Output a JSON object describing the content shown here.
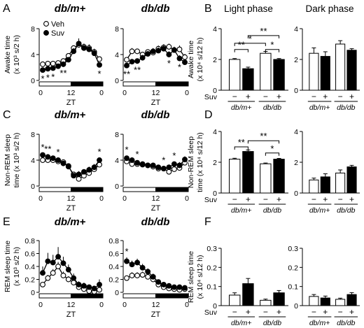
{
  "chart_data": [
    {
      "id": "A-dbm",
      "letter": "A",
      "type": "line",
      "title": "db/m+",
      "ylabel": [
        "Awake time",
        "(x 10³ s/2 h)"
      ],
      "xlabel": "ZT",
      "x": [
        0,
        2,
        4,
        6,
        8,
        10,
        12,
        14,
        16,
        18,
        20,
        22
      ],
      "ylim": [
        0,
        8
      ],
      "yticks": [
        "0",
        "4",
        "8"
      ],
      "xticks": [
        "0",
        "12",
        "0"
      ],
      "light_dark_bar": true,
      "legend": [
        "Veh",
        "Suv"
      ],
      "series": [
        {
          "name": "Veh",
          "values": [
            2.5,
            2.6,
            2.6,
            2.7,
            3.0,
            3.8,
            5.0,
            5.5,
            5.2,
            5.0,
            4.4,
            3.3
          ],
          "err": [
            0.3,
            0.3,
            0.3,
            0.3,
            0.3,
            0.4,
            0.4,
            0.6,
            0.5,
            0.6,
            0.5,
            0.4
          ]
        },
        {
          "name": "Suv",
          "values": [
            1.6,
            1.8,
            1.9,
            2.2,
            2.5,
            3.2,
            4.5,
            5.7,
            5.0,
            4.8,
            4.2,
            2.4
          ],
          "err": [
            0.3,
            0.3,
            0.3,
            0.3,
            0.3,
            0.4,
            0.5,
            0.8,
            0.5,
            0.6,
            0.5,
            0.4
          ]
        }
      ],
      "sig": [
        {
          "x": 0,
          "t": "*"
        },
        {
          "x": 2,
          "t": "*"
        },
        {
          "x": 4,
          "t": "*"
        },
        {
          "x": 8,
          "t": "**"
        },
        {
          "x": 22,
          "t": "*"
        }
      ]
    },
    {
      "id": "A-dbdb",
      "type": "line",
      "title": "db/db",
      "x": [
        0,
        2,
        4,
        6,
        8,
        10,
        12,
        14,
        16,
        18,
        20,
        22
      ],
      "ylim": [
        0,
        8
      ],
      "yticks": [
        "0",
        "4",
        "8"
      ],
      "xticks": [
        "0",
        "12",
        "0"
      ],
      "light_dark_bar": true,
      "series": [
        {
          "name": "Veh",
          "values": [
            3.2,
            4.5,
            4.5,
            4.0,
            4.4,
            4.3,
            4.9,
            5.1,
            5.2,
            4.7,
            4.8,
            3.6
          ],
          "err": [
            0.4,
            0.5,
            0.4,
            0.4,
            0.4,
            0.4,
            0.5,
            0.5,
            0.5,
            0.5,
            0.6,
            0.5
          ]
        },
        {
          "name": "Suv",
          "values": [
            2.3,
            2.9,
            3.0,
            3.5,
            4.1,
            4.5,
            4.6,
            4.9,
            4.0,
            4.7,
            3.4,
            2.8
          ],
          "err": [
            0.4,
            0.4,
            0.4,
            0.4,
            0.4,
            0.5,
            0.5,
            0.5,
            0.5,
            0.5,
            0.5,
            0.5
          ]
        }
      ],
      "sig": [
        {
          "x": 0,
          "t": "**"
        },
        {
          "x": 4,
          "t": "**"
        },
        {
          "x": 16,
          "t": "*"
        },
        {
          "x": 20,
          "t": "*"
        }
      ]
    },
    {
      "id": "B-light",
      "letter": "B",
      "type": "bar",
      "title": "Light phase",
      "ylabel": [
        "Awake time",
        "(x 10⁴ s/12 h)"
      ],
      "ylim": [
        0,
        4
      ],
      "yticks": [
        "0",
        "2",
        "4"
      ],
      "groups": [
        "db/m+",
        "db/db"
      ],
      "treatment_label": "Suv",
      "treatment": [
        "−",
        "+"
      ],
      "values": [
        2.0,
        1.4,
        2.4,
        2.0
      ],
      "err": [
        0.06,
        0.1,
        0.12,
        0.06
      ],
      "brackets": [
        {
          "a": 0,
          "b": 1,
          "h": 2.65,
          "t": "**"
        },
        {
          "a": 0,
          "b": 2,
          "h": 3.05,
          "t": "*"
        },
        {
          "a": 2,
          "b": 3,
          "h": 2.65,
          "t": "*"
        },
        {
          "a": 1,
          "b": 3,
          "h": 3.55,
          "t": "**"
        }
      ]
    },
    {
      "id": "B-dark",
      "type": "bar",
      "title": "Dark phase",
      "ylim": [
        0,
        4
      ],
      "yticks": [
        "0",
        "2",
        "4"
      ],
      "groups": [
        "db/m+",
        "db/db"
      ],
      "treatment": [
        "−",
        "+"
      ],
      "values": [
        2.4,
        2.2,
        3.0,
        2.6
      ],
      "err": [
        0.35,
        0.3,
        0.22,
        0.1
      ],
      "brackets": []
    },
    {
      "id": "C-dbm",
      "letter": "C",
      "type": "line",
      "title": "db/m+",
      "ylabel": [
        "Non-REM sleep",
        "time (x 10³ s/2 h)"
      ],
      "xlabel": "ZT",
      "x": [
        0,
        2,
        4,
        6,
        8,
        10,
        12,
        14,
        16,
        18,
        20,
        22
      ],
      "ylim": [
        0,
        8
      ],
      "yticks": [
        "0",
        "4",
        "8"
      ],
      "xticks": [
        "0",
        "12",
        "0"
      ],
      "light_dark_bar": true,
      "series": [
        {
          "name": "Veh",
          "values": [
            4.0,
            4.0,
            4.0,
            3.8,
            3.7,
            3.0,
            1.8,
            1.1,
            1.6,
            2.0,
            2.6,
            3.3
          ],
          "err": [
            0.3,
            0.3,
            0.3,
            0.3,
            0.3,
            0.4,
            0.4,
            0.5,
            0.4,
            0.5,
            0.5,
            0.4
          ]
        },
        {
          "name": "Suv",
          "values": [
            4.8,
            4.5,
            4.3,
            4.0,
            3.5,
            3.1,
            1.6,
            1.8,
            2.2,
            2.5,
            2.9,
            4.0
          ],
          "err": [
            0.3,
            0.3,
            0.3,
            0.3,
            0.3,
            0.4,
            0.4,
            0.5,
            0.4,
            0.5,
            0.5,
            0.4
          ]
        }
      ],
      "sig": [
        {
          "x": 0,
          "t": "*"
        },
        {
          "x": 2,
          "t": "**"
        },
        {
          "x": 6,
          "t": "*"
        },
        {
          "x": 22,
          "t": "*"
        }
      ]
    },
    {
      "id": "C-dbdb",
      "type": "line",
      "title": "db/db",
      "x": [
        0,
        2,
        4,
        6,
        8,
        10,
        12,
        14,
        16,
        18,
        20,
        22
      ],
      "ylim": [
        0,
        8
      ],
      "yticks": [
        "0",
        "4",
        "8"
      ],
      "xticks": [
        "0",
        "12",
        "0"
      ],
      "light_dark_bar": true,
      "series": [
        {
          "name": "Veh",
          "values": [
            3.8,
            3.4,
            3.4,
            3.3,
            3.2,
            3.0,
            2.7,
            2.7,
            2.2,
            2.6,
            2.8,
            3.6
          ],
          "err": [
            0.4,
            0.4,
            0.4,
            0.4,
            0.4,
            0.4,
            0.4,
            0.4,
            0.4,
            0.4,
            0.5,
            0.5
          ]
        },
        {
          "name": "Suv",
          "values": [
            4.3,
            4.0,
            3.6,
            3.4,
            3.2,
            3.2,
            2.9,
            2.7,
            2.9,
            3.4,
            3.2,
            4.1
          ],
          "err": [
            0.4,
            0.4,
            0.4,
            0.4,
            0.4,
            0.4,
            0.4,
            0.4,
            0.4,
            0.4,
            0.5,
            0.5
          ]
        }
      ],
      "sig": [
        {
          "x": 0,
          "t": "*"
        },
        {
          "x": 4,
          "t": "*"
        },
        {
          "x": 14,
          "t": "*"
        },
        {
          "x": 18,
          "t": "*"
        }
      ]
    },
    {
      "id": "D-light",
      "letter": "D",
      "type": "bar",
      "ylabel": [
        "Non-REM sleep",
        "time (x 10⁴ s/12 h)"
      ],
      "ylim": [
        0,
        4
      ],
      "yticks": [
        "0",
        "2",
        "4"
      ],
      "groups": [
        "db/m+",
        "db/db"
      ],
      "treatment_label": "Suv",
      "treatment": [
        "−",
        "+"
      ],
      "values": [
        2.2,
        2.7,
        1.9,
        2.2
      ],
      "err": [
        0.06,
        0.1,
        0.05,
        0.05
      ],
      "brackets": [
        {
          "a": 0,
          "b": 1,
          "h": 3.0,
          "t": "**"
        },
        {
          "a": 2,
          "b": 3,
          "h": 2.6,
          "t": "*"
        },
        {
          "a": 1,
          "b": 3,
          "h": 3.4,
          "t": "**"
        }
      ]
    },
    {
      "id": "D-dark",
      "type": "bar",
      "ylim": [
        0,
        4
      ],
      "yticks": [
        "0",
        "2",
        "4"
      ],
      "groups": [
        "db/m+",
        "db/db"
      ],
      "treatment": [
        "−",
        "+"
      ],
      "values": [
        0.85,
        1.05,
        1.3,
        1.7
      ],
      "err": [
        0.12,
        0.2,
        0.2,
        0.1
      ],
      "brackets": []
    },
    {
      "id": "E-dbm",
      "letter": "E",
      "type": "line",
      "title": "db/m+",
      "ylabel": [
        "REM sleep time",
        "(x 10³ s/2 h)"
      ],
      "xlabel": "ZT",
      "x": [
        0,
        2,
        4,
        6,
        8,
        10,
        12,
        14,
        16,
        18,
        20,
        22
      ],
      "ylim": [
        0,
        0.8
      ],
      "yticks": [
        "0",
        "0.2",
        "0.4",
        "0.6",
        "0.8"
      ],
      "xticks": [
        "0",
        "12",
        "0"
      ],
      "light_dark_bar": true,
      "series": [
        {
          "name": "Veh",
          "values": [
            0.12,
            0.22,
            0.3,
            0.4,
            0.26,
            0.2,
            0.15,
            0.08,
            0.05,
            0.02,
            0.01,
            0.04
          ],
          "err": [
            0.04,
            0.05,
            0.06,
            0.07,
            0.06,
            0.05,
            0.05,
            0.04,
            0.03,
            0.02,
            0.02,
            0.03
          ]
        },
        {
          "name": "Suv",
          "values": [
            0.3,
            0.48,
            0.46,
            0.55,
            0.45,
            0.35,
            0.22,
            0.12,
            0.1,
            0.08,
            0.06,
            0.12
          ],
          "err": [
            0.1,
            0.13,
            0.12,
            0.15,
            0.1,
            0.08,
            0.07,
            0.05,
            0.05,
            0.04,
            0.04,
            0.08
          ]
        }
      ],
      "sig": []
    },
    {
      "id": "E-dbdb",
      "type": "line",
      "title": "db/db",
      "x": [
        0,
        2,
        4,
        6,
        8,
        10,
        12,
        14,
        16,
        18,
        20,
        22
      ],
      "ylim": [
        0,
        0.8
      ],
      "yticks": [
        "0",
        "0.2",
        "0.4",
        "0.6",
        "0.8"
      ],
      "xticks": [
        "0",
        "12",
        "0"
      ],
      "light_dark_bar": true,
      "series": [
        {
          "name": "Veh",
          "values": [
            0.22,
            0.26,
            0.26,
            0.27,
            0.24,
            0.2,
            0.12,
            0.08,
            0.06,
            0.05,
            0.04,
            0.05
          ],
          "err": [
            0.04,
            0.05,
            0.05,
            0.05,
            0.05,
            0.04,
            0.04,
            0.03,
            0.03,
            0.02,
            0.02,
            0.03
          ]
        },
        {
          "name": "Suv",
          "values": [
            0.48,
            0.43,
            0.46,
            0.38,
            0.32,
            0.24,
            0.16,
            0.12,
            0.1,
            0.08,
            0.08,
            0.07
          ],
          "err": [
            0.06,
            0.06,
            0.06,
            0.06,
            0.05,
            0.05,
            0.04,
            0.04,
            0.04,
            0.03,
            0.03,
            0.04
          ]
        }
      ],
      "sig": [
        {
          "x": 0,
          "t": "*"
        }
      ]
    },
    {
      "id": "F-light",
      "letter": "F",
      "type": "bar",
      "ylabel": [
        "REM sleep time",
        "(x 10⁴ s/12 h)"
      ],
      "ylim": [
        0,
        0.3
      ],
      "yticks": [
        "0",
        "0.1",
        "0.2",
        "0.3"
      ],
      "groups": [
        "db/m+",
        "db/db"
      ],
      "treatment_label": "Suv",
      "treatment": [
        "−",
        "+"
      ],
      "values": [
        0.055,
        0.115,
        0.028,
        0.067
      ],
      "err": [
        0.012,
        0.027,
        0.006,
        0.012
      ],
      "brackets": []
    },
    {
      "id": "F-dark",
      "type": "bar",
      "ylim": [
        0,
        0.3
      ],
      "yticks": [
        "0",
        "0.1",
        "0.2",
        "0.3"
      ],
      "groups": [
        "db/m+",
        "db/db"
      ],
      "treatment": [
        "−",
        "+"
      ],
      "values": [
        0.048,
        0.04,
        0.033,
        0.058
      ],
      "err": [
        0.01,
        0.01,
        0.006,
        0.01
      ],
      "brackets": []
    }
  ]
}
